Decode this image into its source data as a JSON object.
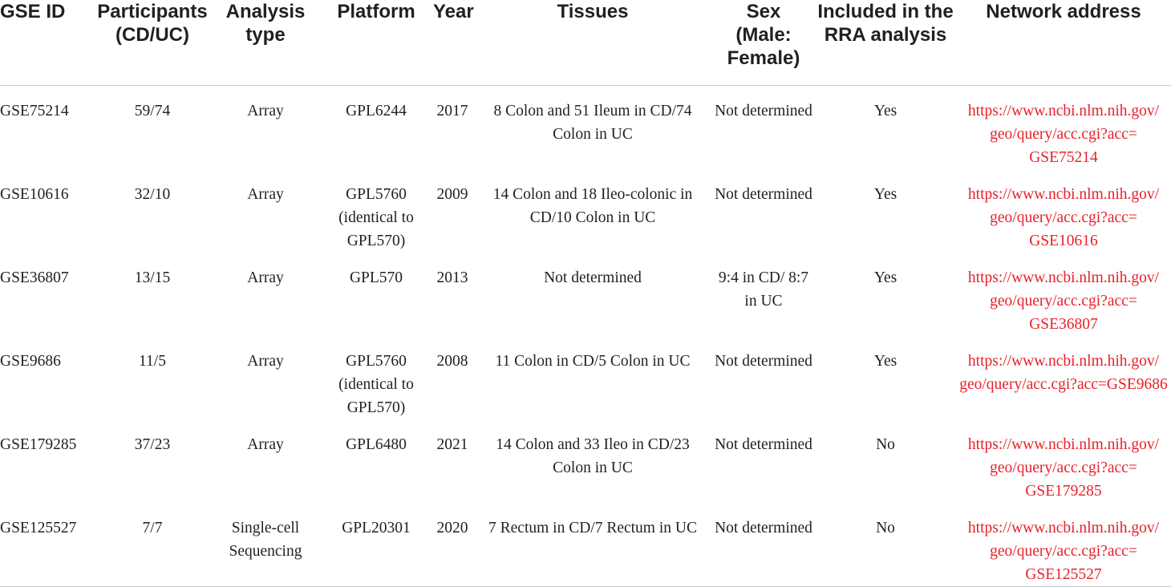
{
  "table": {
    "headers": [
      [
        "GSE ID"
      ],
      [
        "Participants",
        "(CD/UC)"
      ],
      [
        "Analysis",
        "type"
      ],
      [
        "Platform"
      ],
      [
        "Year"
      ],
      [
        "Tissues"
      ],
      [
        "Sex",
        "(Male:",
        "Female)"
      ],
      [
        "Included in the",
        "RRA analysis"
      ],
      [
        "Network address"
      ]
    ],
    "rows": [
      {
        "gse_id": "GSE75214",
        "participants": "59/74",
        "analysis_type": "Array",
        "platform": "GPL6244",
        "year": "2017",
        "tissues": "8 Colon and 51 Ileum in CD/74 Colon in UC",
        "sex": "Not determined",
        "included": "Yes",
        "network_address": "https://www.ncbi.nlm.nih.gov/ geo/query/acc.cgi?acc= GSE75214"
      },
      {
        "gse_id": "GSE10616",
        "participants": "32/10",
        "analysis_type": "Array",
        "platform": "GPL5760 (identical to GPL570)",
        "year": "2009",
        "tissues": "14 Colon and 18 Ileo-colonic in CD/10 Colon in UC",
        "sex": "Not determined",
        "included": "Yes",
        "network_address": "https://www.ncbi.nlm.nih.gov/ geo/query/acc.cgi?acc= GSE10616"
      },
      {
        "gse_id": "GSE36807",
        "participants": "13/15",
        "analysis_type": "Array",
        "platform": "GPL570",
        "year": "2013",
        "tissues": "Not determined",
        "sex": "9:4 in CD/ 8:7 in UC",
        "included": "Yes",
        "network_address": "https://www.ncbi.nlm.nih.gov/ geo/query/acc.cgi?acc= GSE36807"
      },
      {
        "gse_id": "GSE9686",
        "participants": "11/5",
        "analysis_type": "Array",
        "platform": "GPL5760 (identical to GPL570)",
        "year": "2008",
        "tissues": "11 Colon in CD/5 Colon in UC",
        "sex": "Not determined",
        "included": "Yes",
        "network_address": "https://www.ncbi.nlm.hih.gov/ geo/query/acc.cgi?acc=GSE9686"
      },
      {
        "gse_id": "GSE179285",
        "participants": "37/23",
        "analysis_type": "Array",
        "platform": "GPL6480",
        "year": "2021",
        "tissues": "14 Colon and 33 Ileo in CD/23 Colon in UC",
        "sex": "Not determined",
        "included": "No",
        "network_address": "https://www.ncbi.nlm.nih.gov/ geo/query/acc.cgi?acc= GSE179285"
      },
      {
        "gse_id": "GSE125527",
        "participants": "7/7",
        "analysis_type": "Single-cell Sequencing",
        "platform": "GPL20301",
        "year": "2020",
        "tissues": "7 Rectum in CD/7 Rectum in UC",
        "sex": "Not determined",
        "included": "No",
        "network_address": "https://www.ncbi.nlm.nih.gov/ geo/query/acc.cgi?acc= GSE125527"
      }
    ]
  },
  "colors": {
    "text": "#231f20",
    "link": "#e8202a",
    "rule": "#c8c8c8"
  }
}
